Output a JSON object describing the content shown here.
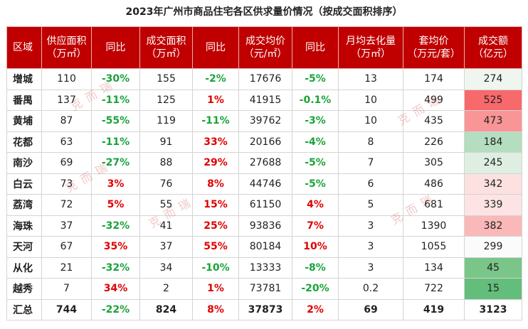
{
  "title": "2023年广州市商品住宅各区供求量价情况（按成交面积排序）",
  "watermark": "克而瑞",
  "table": {
    "headers": [
      "区域",
      "供应面积\n（万㎡）",
      "同比",
      "成交面积\n（万㎡）",
      "同比",
      "成交均价\n（元/㎡）",
      "同比",
      "月均去化量\n（万㎡）",
      "套均价\n（万元/套）",
      "成交额\n（亿元）"
    ],
    "rows": [
      [
        "增城",
        "110",
        "-30%",
        "155",
        "-2%",
        "17676",
        "-5%",
        "13",
        "174",
        "274"
      ],
      [
        "番禺",
        "137",
        "-11%",
        "125",
        "1%",
        "41915",
        "-0.1%",
        "10",
        "499",
        "525"
      ],
      [
        "黄埔",
        "87",
        "-55%",
        "119",
        "-11%",
        "39762",
        "-3%",
        "10",
        "435",
        "473"
      ],
      [
        "花都",
        "63",
        "-11%",
        "91",
        "33%",
        "20166",
        "-4%",
        "8",
        "226",
        "184"
      ],
      [
        "南沙",
        "69",
        "-27%",
        "88",
        "29%",
        "27688",
        "-5%",
        "7",
        "305",
        "245"
      ],
      [
        "白云",
        "73",
        "3%",
        "76",
        "8%",
        "44746",
        "-5%",
        "6",
        "486",
        "342"
      ],
      [
        "荔湾",
        "72",
        "5%",
        "55",
        "15%",
        "61150",
        "4%",
        "5",
        "681",
        "339"
      ],
      [
        "海珠",
        "37",
        "-32%",
        "41",
        "25%",
        "93836",
        "7%",
        "3",
        "1390",
        "382"
      ],
      [
        "天河",
        "67",
        "35%",
        "37",
        "55%",
        "80184",
        "10%",
        "3",
        "1055",
        "299"
      ],
      [
        "从化",
        "21",
        "-32%",
        "34",
        "-10%",
        "13333",
        "-8%",
        "3",
        "134",
        "45"
      ],
      [
        "越秀",
        "7",
        "34%",
        "2",
        "1%",
        "73781",
        "-20%",
        "0.2",
        "722",
        "15"
      ],
      [
        "汇总",
        "744",
        "-22%",
        "824",
        "8%",
        "37873",
        "2%",
        "69",
        "419",
        "3123"
      ]
    ],
    "heat_colors": [
      "#eef6ef",
      "#f8696b",
      "#f99596",
      "#b5ddc0",
      "#deefe2",
      "#fde0e0",
      "#fde3e3",
      "#fab8b8",
      "#fcfbfb",
      "#7ac689",
      "#63be7b",
      "#ffffff"
    ]
  }
}
